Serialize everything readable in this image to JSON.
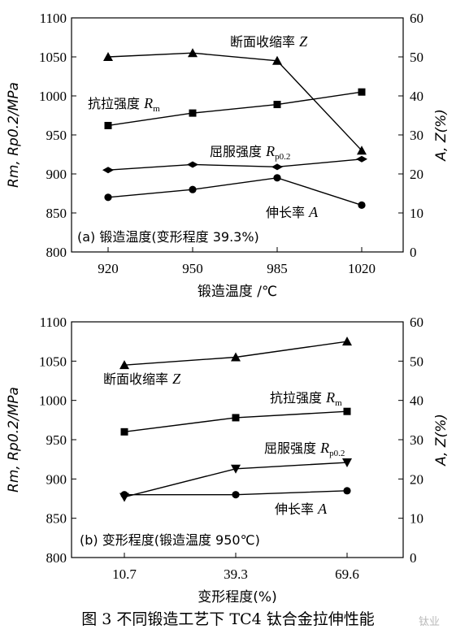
{
  "caption": "图 3  不同锻造工艺下 TC4 钛合金拉伸性能",
  "watermark": "钛业",
  "chart_data": [
    {
      "type": "line",
      "panel_label": "(a) 锻造温度(变形程度 39.3%)",
      "categories": [
        "920",
        "950",
        "985",
        "1020"
      ],
      "xlabel": "锻造温度 /℃",
      "ylabel_left": "Rm, Rp0.2/MPa",
      "ylabel_right": "A, Z(%)",
      "ylim_left": [
        800,
        1100
      ],
      "ylim_right": [
        0,
        60
      ],
      "yticks_left": [
        "800",
        "850",
        "900",
        "950",
        "1000",
        "1050",
        "1100"
      ],
      "yticks_right": [
        "0",
        "10",
        "20",
        "30",
        "40",
        "50",
        "60"
      ],
      "series": [
        {
          "name": "断面收缩率 Z",
          "axis": "right",
          "marker": "triangle",
          "values": [
            50,
            51,
            49,
            26
          ]
        },
        {
          "name": "抗拉强度 Rm",
          "axis": "left",
          "marker": "square",
          "values": [
            962,
            978,
            989,
            1005
          ]
        },
        {
          "name": "屈服强度 Rp0.2",
          "axis": "left",
          "marker": "diamond",
          "values": [
            905,
            912,
            909,
            919
          ]
        },
        {
          "name": "伸长率 A",
          "axis": "right",
          "marker": "circle",
          "values": [
            14,
            16,
            19,
            12
          ]
        }
      ]
    },
    {
      "type": "line",
      "panel_label": "(b) 变形程度(锻造温度 950℃)",
      "categories": [
        "10.7",
        "39.3",
        "69.6"
      ],
      "xlabel": "变形程度(%)",
      "ylabel_left": "Rm, Rp0.2/MPa",
      "ylabel_right": "A, Z(%)",
      "ylim_left": [
        800,
        1100
      ],
      "ylim_right": [
        0,
        60
      ],
      "yticks_left": [
        "800",
        "850",
        "900",
        "950",
        "1000",
        "1050",
        "1100"
      ],
      "yticks_right": [
        "0",
        "10",
        "20",
        "30",
        "40",
        "50",
        "60"
      ],
      "series": [
        {
          "name": "断面收缩率 Z",
          "axis": "right",
          "marker": "triangle",
          "values": [
            49,
            51,
            55
          ]
        },
        {
          "name": "抗拉强度 Rm",
          "axis": "left",
          "marker": "square",
          "values": [
            960,
            978,
            986
          ]
        },
        {
          "name": "屈服强度 Rp0.2",
          "axis": "left",
          "marker": "triangle-down",
          "values": [
            877,
            913,
            921
          ]
        },
        {
          "name": "伸长率 A",
          "axis": "right",
          "marker": "circle",
          "values": [
            16,
            16,
            17
          ]
        }
      ]
    }
  ]
}
